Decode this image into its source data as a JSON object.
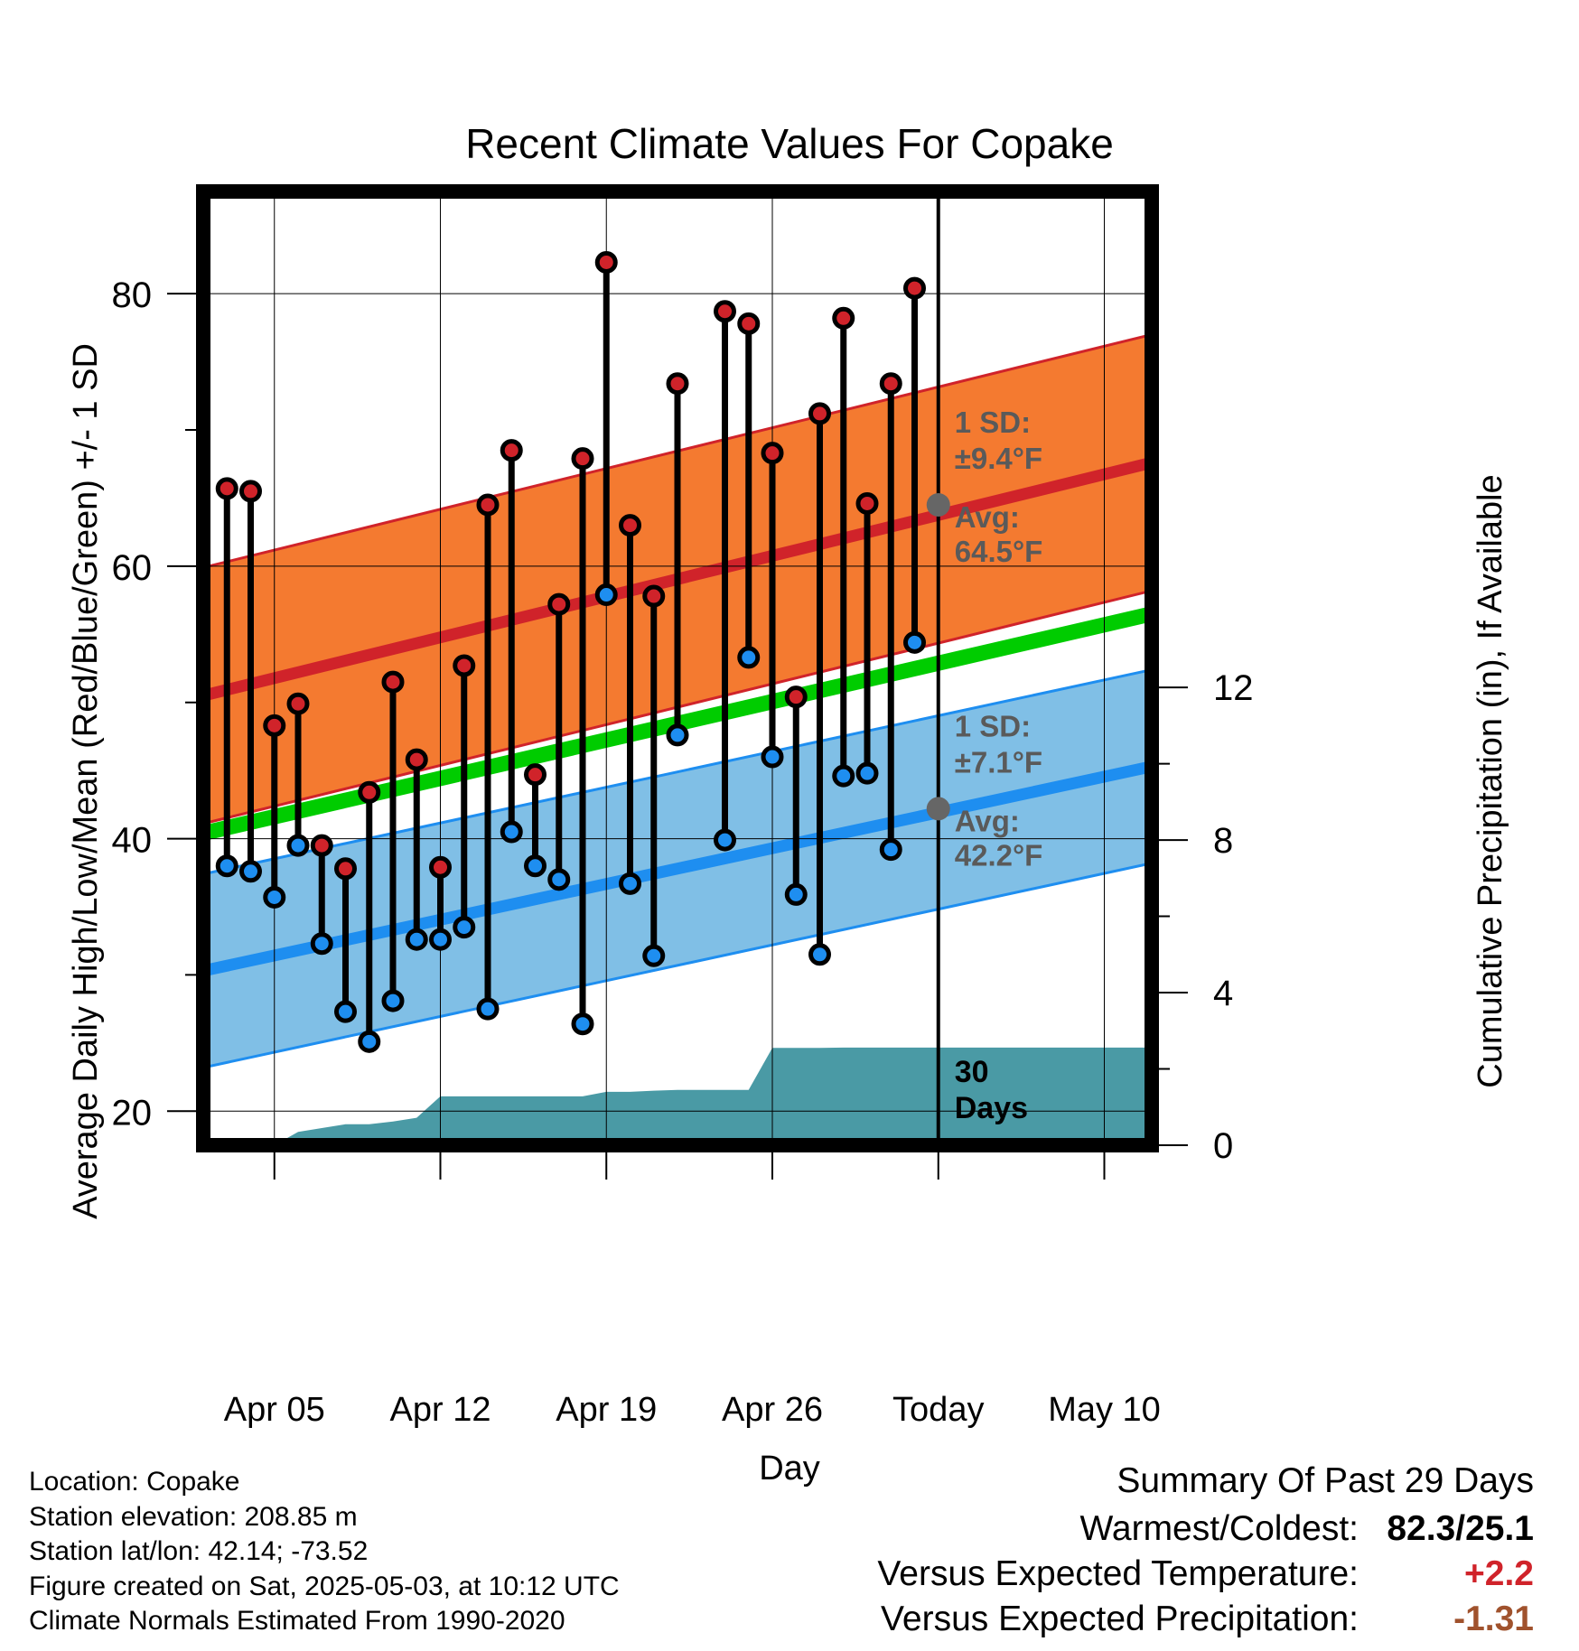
{
  "chart_data": {
    "type": "line",
    "title": "Recent Climate Values For Copake",
    "xlabel": "Day",
    "ylabel": "Average Daily High/Low/Mean (Red/Blue/Green) +/- 1 SD",
    "y2label": "Cumulative Precipitation (in), If Available",
    "ylim": [
      17.5,
      87.5
    ],
    "y_ticks": [
      20,
      40,
      60,
      80
    ],
    "y2lim": [
      0,
      25
    ],
    "y2_ticks": [
      0,
      4,
      8,
      12
    ],
    "xlim": [
      "2025-04-02",
      "2025-05-12"
    ],
    "x_ticks": [
      {
        "date": "2025-04-05",
        "label": "Apr 05"
      },
      {
        "date": "2025-04-12",
        "label": "Apr 12"
      },
      {
        "date": "2025-04-19",
        "label": "Apr 19"
      },
      {
        "date": "2025-04-26",
        "label": "Apr 26"
      },
      {
        "date": "2025-05-03",
        "label": "Today"
      },
      {
        "date": "2025-05-10",
        "label": "May 10"
      }
    ],
    "grid": true,
    "today": "2025-05-03",
    "period_label": "30 Days",
    "normals": {
      "dates": [
        "2025-04-02",
        "2025-05-12"
      ],
      "high_mean": [
        50.5,
        67.6
      ],
      "high_sd": 9.4,
      "low_mean": [
        30.3,
        45.3
      ],
      "low_sd": 7.1,
      "mean": [
        40.4,
        56.5
      ]
    },
    "annotations": {
      "high_sd_label": "1 SD:",
      "high_sd_value": "±9.4°F",
      "high_avg_label": "Avg:",
      "high_avg_value": "64.5°F",
      "high_avg": 64.5,
      "low_sd_label": "1 SD:",
      "low_sd_value": "±7.1°F",
      "low_avg_label": "Avg:",
      "low_avg_value": "42.2°F",
      "low_avg": 42.2
    },
    "observations": [
      {
        "date": "2025-04-03",
        "high": 65.7,
        "low": 38.0
      },
      {
        "date": "2025-04-04",
        "high": 65.5,
        "low": 37.6
      },
      {
        "date": "2025-04-05",
        "high": 48.3,
        "low": 35.7
      },
      {
        "date": "2025-04-06",
        "high": 49.9,
        "low": 39.5
      },
      {
        "date": "2025-04-07",
        "high": 39.5,
        "low": 32.3
      },
      {
        "date": "2025-04-08",
        "high": 37.8,
        "low": 27.3
      },
      {
        "date": "2025-04-09",
        "high": 43.4,
        "low": 25.1
      },
      {
        "date": "2025-04-10",
        "high": 51.5,
        "low": 28.1
      },
      {
        "date": "2025-04-11",
        "high": 45.8,
        "low": 32.6
      },
      {
        "date": "2025-04-12",
        "high": 37.9,
        "low": 32.6
      },
      {
        "date": "2025-04-13",
        "high": 52.7,
        "low": 33.5
      },
      {
        "date": "2025-04-14",
        "high": 64.5,
        "low": 27.5
      },
      {
        "date": "2025-04-15",
        "high": 68.5,
        "low": 40.5
      },
      {
        "date": "2025-04-16",
        "high": 44.7,
        "low": 38.0
      },
      {
        "date": "2025-04-17",
        "high": 57.2,
        "low": 37.0
      },
      {
        "date": "2025-04-18",
        "high": 67.9,
        "low": 26.4
      },
      {
        "date": "2025-04-19",
        "high": 82.3,
        "low": 57.9
      },
      {
        "date": "2025-04-20",
        "high": 63.0,
        "low": 36.7
      },
      {
        "date": "2025-04-21",
        "high": 57.8,
        "low": 31.4
      },
      {
        "date": "2025-04-22",
        "high": 73.4,
        "low": 47.6
      },
      {
        "date": "2025-04-24",
        "high": 78.7,
        "low": 39.9
      },
      {
        "date": "2025-04-25",
        "high": 77.8,
        "low": 53.3
      },
      {
        "date": "2025-04-26",
        "high": 68.3,
        "low": 46.0
      },
      {
        "date": "2025-04-27",
        "high": 50.4,
        "low": 35.9
      },
      {
        "date": "2025-04-28",
        "high": 71.2,
        "low": 31.5
      },
      {
        "date": "2025-04-29",
        "high": 78.2,
        "low": 44.6
      },
      {
        "date": "2025-04-30",
        "high": 64.6,
        "low": 44.8
      },
      {
        "date": "2025-05-01",
        "high": 73.4,
        "low": 39.2
      },
      {
        "date": "2025-05-02",
        "high": 80.4,
        "low": 54.4
      }
    ],
    "precipitation": {
      "dates": [
        "2025-04-05",
        "2025-04-06",
        "2025-04-07",
        "2025-04-08",
        "2025-04-09",
        "2025-04-10",
        "2025-04-11",
        "2025-04-12",
        "2025-04-13",
        "2025-04-14",
        "2025-04-15",
        "2025-04-16",
        "2025-04-17",
        "2025-04-18",
        "2025-04-19",
        "2025-04-20",
        "2025-04-21",
        "2025-04-22",
        "2025-04-23",
        "2025-04-24",
        "2025-04-25",
        "2025-04-26",
        "2025-04-27",
        "2025-04-28",
        "2025-04-29",
        "2025-04-30",
        "2025-05-01",
        "2025-05-02",
        "2025-05-03",
        "2025-05-12"
      ],
      "cumulative": [
        0.0,
        0.35,
        0.45,
        0.55,
        0.55,
        0.62,
        0.72,
        1.28,
        1.28,
        1.28,
        1.28,
        1.28,
        1.28,
        1.28,
        1.4,
        1.4,
        1.43,
        1.45,
        1.45,
        1.45,
        1.45,
        2.55,
        2.55,
        2.55,
        2.56,
        2.56,
        2.56,
        2.56,
        2.56,
        2.56
      ]
    },
    "colors": {
      "high_band": "#f47a30",
      "high_line": "#d0232a",
      "low_band": "#80bfe6",
      "low_line": "#1e8ef0",
      "mean_line": "#00cc00",
      "precip_fill": "#4a9aa5",
      "high_marker": "#d0232a",
      "low_marker": "#1e8ef0",
      "annotation_text": "#5a5a5a"
    }
  },
  "footer": {
    "location": "Location: Copake",
    "elevation": "Station elevation: 208.85 m",
    "latlon": "Station lat/lon: 42.14; -73.52",
    "created": "Figure created on Sat, 2025-05-03, at 10:12 UTC",
    "normals": "Climate Normals Estimated From 1990-2020"
  },
  "summary": {
    "heading": "Summary Of Past 29 Days",
    "warmest_label": "Warmest/Coldest:",
    "warmest_value": "82.3/25.1",
    "temp_label": "Versus Expected Temperature:",
    "temp_value": "+2.2",
    "temp_color": "#d0232a",
    "precip_label": "Versus Expected Precipitation:",
    "precip_value": "-1.31",
    "precip_color": "#a0522d"
  }
}
